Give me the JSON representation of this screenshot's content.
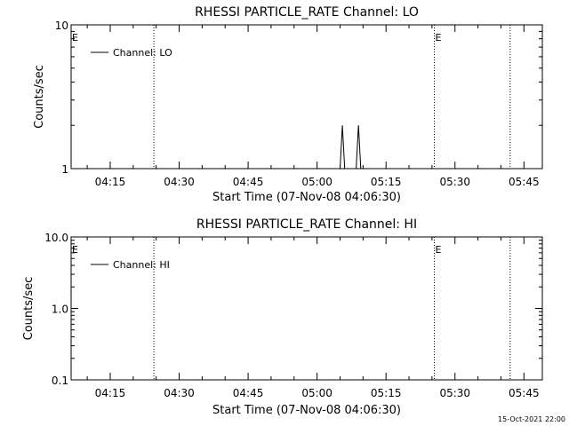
{
  "footer": {
    "timestamp": "15-Oct-2021 22:00"
  },
  "chart_data": [
    {
      "type": "line",
      "title": "RHESSI PARTICLE_RATE Channel: LO",
      "xlabel": "Start Time (07-Nov-08 04:06:30)",
      "ylabel": "Counts/sec",
      "yscale": "log",
      "ylim": [
        1,
        10
      ],
      "y_ticks": [
        {
          "value": 1,
          "label": "1"
        },
        {
          "value": 10,
          "label": "10"
        }
      ],
      "xlim": [
        "04:06:30",
        "05:49:00"
      ],
      "x_ticks": [
        {
          "value": "04:15",
          "label": "04:15"
        },
        {
          "value": "04:30",
          "label": "04:30"
        },
        {
          "value": "04:45",
          "label": "04:45"
        },
        {
          "value": "05:00",
          "label": "05:00"
        },
        {
          "value": "05:15",
          "label": "05:15"
        },
        {
          "value": "05:30",
          "label": "05:30"
        },
        {
          "value": "05:45",
          "label": "05:45"
        }
      ],
      "legend": {
        "position": "top-left",
        "entries": [
          "Channel: LO"
        ]
      },
      "series": [
        {
          "name": "Channel: LO",
          "color": "#000000",
          "points": [
            [
              "05:05:00",
              1
            ],
            [
              "05:05:30",
              2
            ],
            [
              "05:06:00",
              1
            ],
            [
              "05:08:30",
              1
            ],
            [
              "05:09:00",
              2
            ],
            [
              "05:09:30",
              1
            ]
          ]
        }
      ],
      "markers": [
        {
          "time": "04:06:30",
          "label": "E"
        },
        {
          "time": "04:24:30",
          "label": ""
        },
        {
          "time": "05:25:30",
          "label": "E"
        },
        {
          "time": "05:42:00",
          "label": ""
        }
      ]
    },
    {
      "type": "line",
      "title": "RHESSI PARTICLE_RATE Channel: HI",
      "xlabel": "Start Time (07-Nov-08 04:06:30)",
      "ylabel": "Counts/sec",
      "yscale": "log",
      "ylim": [
        0.1,
        10
      ],
      "y_ticks": [
        {
          "value": 0.1,
          "label": "0.1"
        },
        {
          "value": 1,
          "label": "1.0"
        },
        {
          "value": 10,
          "label": "10.0"
        }
      ],
      "xlim": [
        "04:06:30",
        "05:49:00"
      ],
      "x_ticks": [
        {
          "value": "04:15",
          "label": "04:15"
        },
        {
          "value": "04:30",
          "label": "04:30"
        },
        {
          "value": "04:45",
          "label": "04:45"
        },
        {
          "value": "05:00",
          "label": "05:00"
        },
        {
          "value": "05:15",
          "label": "05:15"
        },
        {
          "value": "05:30",
          "label": "05:30"
        },
        {
          "value": "05:45",
          "label": "05:45"
        }
      ],
      "legend": {
        "position": "top-left",
        "entries": [
          "Channel: HI"
        ]
      },
      "series": [
        {
          "name": "Channel: HI",
          "color": "#000000",
          "points": []
        }
      ],
      "markers": [
        {
          "time": "04:06:30",
          "label": "E"
        },
        {
          "time": "04:24:30",
          "label": ""
        },
        {
          "time": "05:25:30",
          "label": "E"
        },
        {
          "time": "05:42:00",
          "label": ""
        }
      ]
    }
  ]
}
